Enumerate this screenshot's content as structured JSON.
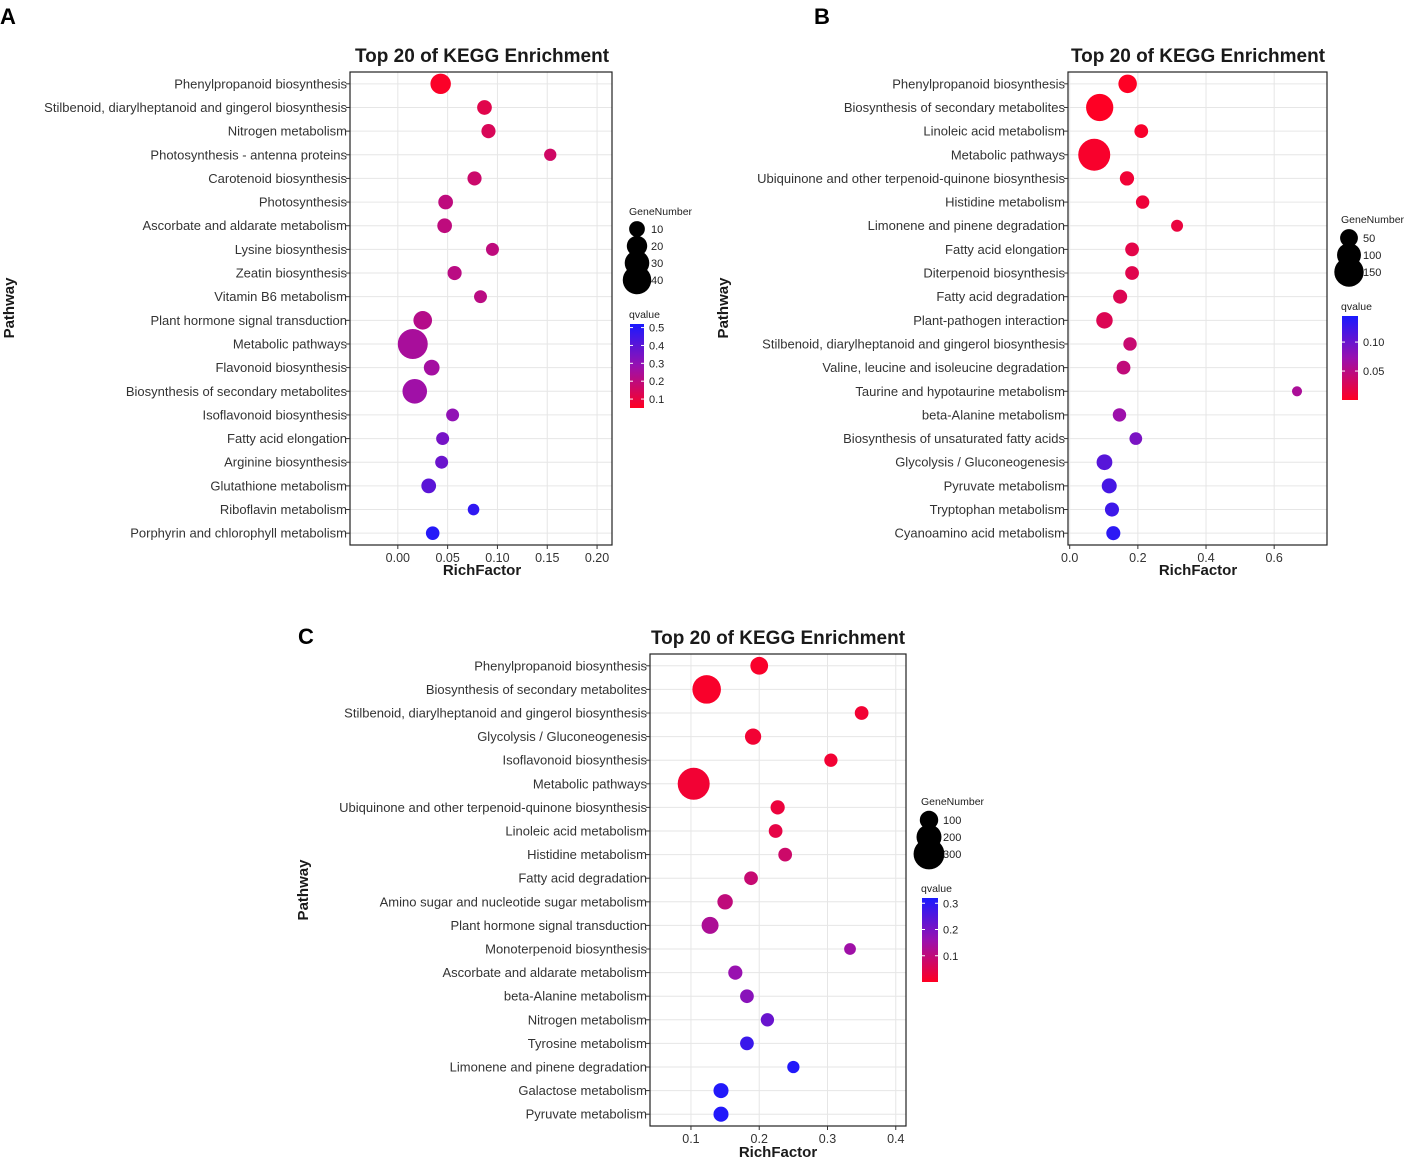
{
  "chart_data": [
    {
      "type": "scatter",
      "panel": "A",
      "title": "Top 20 of KEGG Enrichment",
      "xlabel": "RichFactor",
      "ylabel": "Pathway",
      "xlim": [
        -0.048,
        0.215
      ],
      "xticks": [
        0.0,
        0.05,
        0.1,
        0.15,
        0.2
      ],
      "xtick_labels": [
        "0.00",
        "0.05",
        "0.10",
        "0.15",
        "0.20"
      ],
      "size_legend": {
        "title": "GeneNumber",
        "values": [
          10,
          20,
          30,
          40
        ]
      },
      "color_legend": {
        "title": "qvalue",
        "min": 0.05,
        "max": 0.52,
        "ticks": [
          0.5,
          0.4,
          0.3,
          0.2,
          0.1
        ],
        "tick_labels": [
          "0.5",
          "0.4",
          "0.3",
          "0.2",
          "0.1"
        ]
      },
      "points": [
        {
          "pathway": "Phenylpropanoid biosynthesis",
          "rich_factor": 0.043,
          "gene_number": 20,
          "qvalue": 0.06
        },
        {
          "pathway": "Stilbenoid, diarylheptanoid and gingerol biosynthesis",
          "rich_factor": 0.087,
          "gene_number": 8,
          "qvalue": 0.12
        },
        {
          "pathway": "Nitrogen metabolism",
          "rich_factor": 0.091,
          "gene_number": 7,
          "qvalue": 0.14
        },
        {
          "pathway": "Photosynthesis - antenna proteins",
          "rich_factor": 0.153,
          "gene_number": 4,
          "qvalue": 0.16
        },
        {
          "pathway": "Carotenoid biosynthesis",
          "rich_factor": 0.077,
          "gene_number": 7,
          "qvalue": 0.17
        },
        {
          "pathway": "Photosynthesis",
          "rich_factor": 0.048,
          "gene_number": 8,
          "qvalue": 0.2
        },
        {
          "pathway": "Ascorbate and aldarate metabolism",
          "rich_factor": 0.047,
          "gene_number": 8,
          "qvalue": 0.2
        },
        {
          "pathway": "Lysine biosynthesis",
          "rich_factor": 0.095,
          "gene_number": 5,
          "qvalue": 0.2
        },
        {
          "pathway": "Zeatin biosynthesis",
          "rich_factor": 0.057,
          "gene_number": 7,
          "qvalue": 0.21
        },
        {
          "pathway": "Vitamin B6 metabolism",
          "rich_factor": 0.083,
          "gene_number": 5,
          "qvalue": 0.21
        },
        {
          "pathway": "Plant hormone signal transduction",
          "rich_factor": 0.025,
          "gene_number": 16,
          "qvalue": 0.22
        },
        {
          "pathway": "Metabolic pathways",
          "rich_factor": 0.015,
          "gene_number": 44,
          "qvalue": 0.25
        },
        {
          "pathway": "Flavonoid biosynthesis",
          "rich_factor": 0.034,
          "gene_number": 10,
          "qvalue": 0.26
        },
        {
          "pathway": "Biosynthesis of secondary metabolites",
          "rich_factor": 0.017,
          "gene_number": 30,
          "qvalue": 0.27
        },
        {
          "pathway": "Isoflavonoid biosynthesis",
          "rich_factor": 0.055,
          "gene_number": 5,
          "qvalue": 0.3
        },
        {
          "pathway": "Fatty acid elongation",
          "rich_factor": 0.045,
          "gene_number": 5,
          "qvalue": 0.35
        },
        {
          "pathway": "Arginine biosynthesis",
          "rich_factor": 0.044,
          "gene_number": 5,
          "qvalue": 0.37
        },
        {
          "pathway": "Glutathione metabolism",
          "rich_factor": 0.031,
          "gene_number": 8,
          "qvalue": 0.4
        },
        {
          "pathway": "Riboflavin metabolism",
          "rich_factor": 0.076,
          "gene_number": 3,
          "qvalue": 0.48
        },
        {
          "pathway": "Porphyrin and chlorophyll metabolism",
          "rich_factor": 0.035,
          "gene_number": 6,
          "qvalue": 0.5
        }
      ]
    },
    {
      "type": "scatter",
      "panel": "B",
      "title": "Top 20 of KEGG Enrichment",
      "xlabel": "RichFactor",
      "ylabel": "Pathway",
      "xlim": [
        -0.005,
        0.755
      ],
      "xticks": [
        0.0,
        0.2,
        0.4,
        0.6
      ],
      "xtick_labels": [
        "0.0",
        "0.2",
        "0.4",
        "0.6"
      ],
      "size_legend": {
        "title": "GeneNumber",
        "values": [
          50,
          100,
          150
        ]
      },
      "color_legend": {
        "title": "qvalue",
        "min": 0.0,
        "max": 0.145,
        "ticks": [
          0.1,
          0.05
        ],
        "tick_labels": [
          "0.10",
          "0.05"
        ]
      },
      "points": [
        {
          "pathway": "Phenylpropanoid biosynthesis",
          "rich_factor": 0.17,
          "gene_number": 55,
          "qvalue": 0.001
        },
        {
          "pathway": "Biosynthesis of secondary metabolites",
          "rich_factor": 0.088,
          "gene_number": 130,
          "qvalue": 0.001
        },
        {
          "pathway": "Linoleic acid metabolism",
          "rich_factor": 0.21,
          "gene_number": 22,
          "qvalue": 0.005
        },
        {
          "pathway": "Metabolic pathways",
          "rich_factor": 0.072,
          "gene_number": 175,
          "qvalue": 0.005
        },
        {
          "pathway": "Ubiquinone and other terpenoid-quinone biosynthesis",
          "rich_factor": 0.168,
          "gene_number": 25,
          "qvalue": 0.01
        },
        {
          "pathway": "Histidine metabolism",
          "rich_factor": 0.214,
          "gene_number": 20,
          "qvalue": 0.012
        },
        {
          "pathway": "Limonene and pinene degradation",
          "rich_factor": 0.315,
          "gene_number": 12,
          "qvalue": 0.015
        },
        {
          "pathway": "Fatty acid elongation",
          "rich_factor": 0.183,
          "gene_number": 22,
          "qvalue": 0.02
        },
        {
          "pathway": "Diterpenoid biosynthesis",
          "rich_factor": 0.183,
          "gene_number": 22,
          "qvalue": 0.022
        },
        {
          "pathway": "Fatty acid degradation",
          "rich_factor": 0.148,
          "gene_number": 24,
          "qvalue": 0.025
        },
        {
          "pathway": "Plant-pathogen interaction",
          "rich_factor": 0.102,
          "gene_number": 40,
          "qvalue": 0.025
        },
        {
          "pathway": "Stilbenoid, diarylheptanoid and gingerol biosynthesis",
          "rich_factor": 0.177,
          "gene_number": 20,
          "qvalue": 0.04
        },
        {
          "pathway": "Valine, leucine and isoleucine degradation",
          "rich_factor": 0.158,
          "gene_number": 22,
          "qvalue": 0.045
        },
        {
          "pathway": "Taurine and hypotaurine metabolism",
          "rich_factor": 0.667,
          "gene_number": 4,
          "qvalue": 0.06
        },
        {
          "pathway": "beta-Alanine metabolism",
          "rich_factor": 0.146,
          "gene_number": 20,
          "qvalue": 0.07
        },
        {
          "pathway": "Biosynthesis of unsaturated fatty acids",
          "rich_factor": 0.194,
          "gene_number": 16,
          "qvalue": 0.09
        },
        {
          "pathway": "Glycolysis / Gluconeogenesis",
          "rich_factor": 0.102,
          "gene_number": 35,
          "qvalue": 0.11
        },
        {
          "pathway": "Pyruvate metabolism",
          "rich_factor": 0.116,
          "gene_number": 30,
          "qvalue": 0.12
        },
        {
          "pathway": "Tryptophan metabolism",
          "rich_factor": 0.124,
          "gene_number": 24,
          "qvalue": 0.125
        },
        {
          "pathway": "Cyanoamino acid metabolism",
          "rich_factor": 0.128,
          "gene_number": 24,
          "qvalue": 0.135
        }
      ]
    },
    {
      "type": "scatter",
      "panel": "C",
      "title": "Top 20 of KEGG Enrichment",
      "xlabel": "RichFactor",
      "ylabel": "Pathway",
      "xlim": [
        0.04,
        0.415
      ],
      "xticks": [
        0.1,
        0.2,
        0.3,
        0.4
      ],
      "xtick_labels": [
        "0.1",
        "0.2",
        "0.3",
        "0.4"
      ],
      "size_legend": {
        "title": "GeneNumber",
        "values": [
          100,
          200,
          300
        ]
      },
      "color_legend": {
        "title": "qvalue",
        "min": 0.0,
        "max": 0.32,
        "ticks": [
          0.3,
          0.2,
          0.1
        ],
        "tick_labels": [
          "0.3",
          "0.2",
          "0.1"
        ]
      },
      "points": [
        {
          "pathway": "Phenylpropanoid biosynthesis",
          "rich_factor": 0.2,
          "gene_number": 90,
          "qvalue": 0.01
        },
        {
          "pathway": "Biosynthesis of secondary metabolites",
          "rich_factor": 0.123,
          "gene_number": 260,
          "qvalue": 0.01
        },
        {
          "pathway": "Stilbenoid, diarylheptanoid and gingerol biosynthesis",
          "rich_factor": 0.35,
          "gene_number": 40,
          "qvalue": 0.02
        },
        {
          "pathway": "Glycolysis / Gluconeogenesis",
          "rich_factor": 0.191,
          "gene_number": 70,
          "qvalue": 0.02
        },
        {
          "pathway": "Isoflavonoid biosynthesis",
          "rich_factor": 0.305,
          "gene_number": 35,
          "qvalue": 0.02
        },
        {
          "pathway": "Metabolic pathways",
          "rich_factor": 0.104,
          "gene_number": 320,
          "qvalue": 0.02
        },
        {
          "pathway": "Ubiquinone and other terpenoid-quinone biosynthesis",
          "rich_factor": 0.227,
          "gene_number": 45,
          "qvalue": 0.03
        },
        {
          "pathway": "Linoleic acid metabolism",
          "rich_factor": 0.224,
          "gene_number": 40,
          "qvalue": 0.04
        },
        {
          "pathway": "Histidine metabolism",
          "rich_factor": 0.238,
          "gene_number": 40,
          "qvalue": 0.08
        },
        {
          "pathway": "Fatty acid degradation",
          "rich_factor": 0.188,
          "gene_number": 40,
          "qvalue": 0.09
        },
        {
          "pathway": "Amino sugar and nucleotide sugar metabolism",
          "rich_factor": 0.15,
          "gene_number": 60,
          "qvalue": 0.1
        },
        {
          "pathway": "Plant hormone signal transduction",
          "rich_factor": 0.128,
          "gene_number": 80,
          "qvalue": 0.13
        },
        {
          "pathway": "Monoterpenoid biosynthesis",
          "rich_factor": 0.333,
          "gene_number": 20,
          "qvalue": 0.15
        },
        {
          "pathway": "Ascorbate and aldarate metabolism",
          "rich_factor": 0.165,
          "gene_number": 45,
          "qvalue": 0.16
        },
        {
          "pathway": "beta-Alanine metabolism",
          "rich_factor": 0.182,
          "gene_number": 40,
          "qvalue": 0.18
        },
        {
          "pathway": "Nitrogen metabolism",
          "rich_factor": 0.212,
          "gene_number": 35,
          "qvalue": 0.22
        },
        {
          "pathway": "Tyrosine metabolism",
          "rich_factor": 0.182,
          "gene_number": 40,
          "qvalue": 0.28
        },
        {
          "pathway": "Limonene and pinene degradation",
          "rich_factor": 0.25,
          "gene_number": 25,
          "qvalue": 0.31
        },
        {
          "pathway": "Galactose metabolism",
          "rich_factor": 0.144,
          "gene_number": 55,
          "qvalue": 0.31
        },
        {
          "pathway": "Pyruvate metabolism",
          "rich_factor": 0.144,
          "gene_number": 55,
          "qvalue": 0.31
        }
      ]
    }
  ]
}
